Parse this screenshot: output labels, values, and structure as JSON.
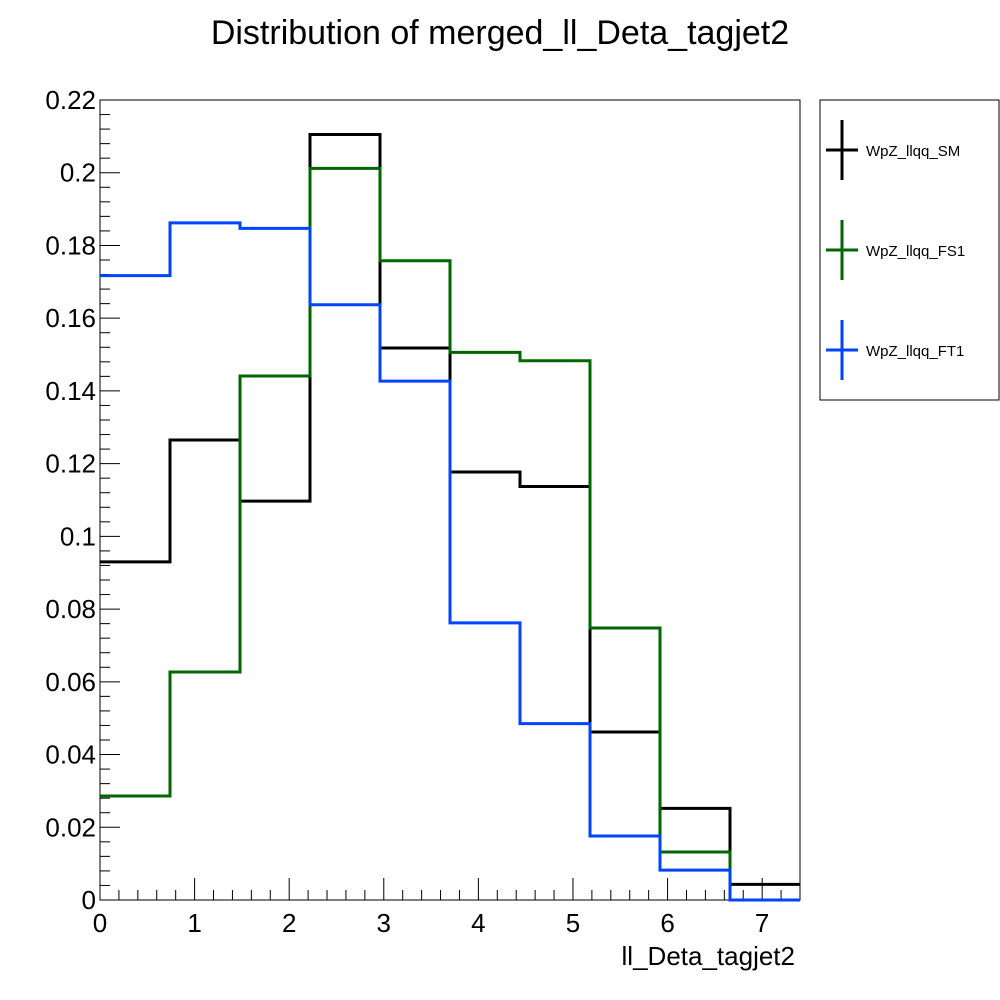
{
  "chart_data": {
    "type": "line",
    "title": "Distribution of merged_ll_Deta_tagjet2",
    "xlabel": "ll_Deta_tagjet2",
    "ylabel": "",
    "xlim": [
      0,
      7.4
    ],
    "ylim": [
      0,
      0.22
    ],
    "bin_edges": [
      0,
      0.74,
      1.48,
      2.22,
      2.96,
      3.7,
      4.44,
      5.18,
      5.92,
      6.66,
      7.4
    ],
    "x_ticks": [
      "0",
      "1",
      "2",
      "3",
      "4",
      "5",
      "6",
      "7"
    ],
    "x_tick_values": [
      0,
      1,
      2,
      3,
      4,
      5,
      6,
      7
    ],
    "y_ticks": [
      "0",
      "0.02",
      "0.04",
      "0.06",
      "0.08",
      "0.1",
      "0.12",
      "0.14",
      "0.16",
      "0.18",
      "0.2",
      "0.22"
    ],
    "y_tick_values": [
      0,
      0.02,
      0.04,
      0.06,
      0.08,
      0.1,
      0.12,
      0.14,
      0.16,
      0.18,
      0.2,
      0.22
    ],
    "grid": false,
    "legend_position": "right",
    "series": [
      {
        "name": "WpZ_llqq_SM",
        "color": "#000000",
        "values": [
          0.093,
          0.1265,
          0.1097,
          0.2105,
          0.1518,
          0.1177,
          0.1137,
          0.0462,
          0.0252,
          0.0043
        ]
      },
      {
        "name": "WpZ_llqq_FS1",
        "color": "#006600",
        "values": [
          0.0286,
          0.0627,
          0.1441,
          0.2012,
          0.1758,
          0.1506,
          0.1483,
          0.0748,
          0.0132,
          0.0
        ]
      },
      {
        "name": "WpZ_llqq_FT1",
        "color": "#0044ff",
        "values": [
          0.1717,
          0.1862,
          0.1847,
          0.1637,
          0.1427,
          0.0762,
          0.0485,
          0.0176,
          0.0082,
          0.0
        ]
      }
    ]
  }
}
